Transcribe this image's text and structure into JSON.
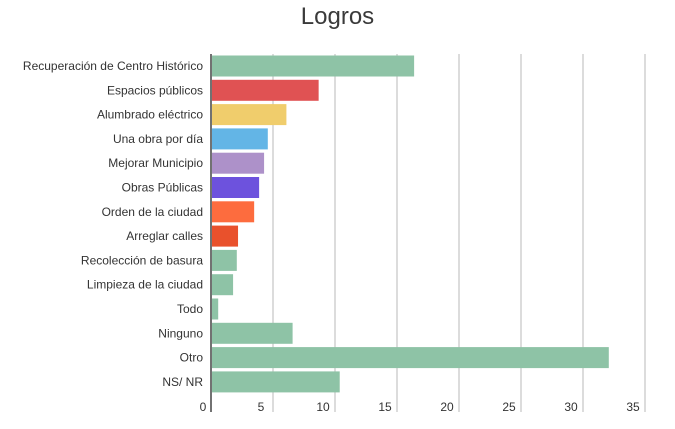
{
  "chart_data": {
    "type": "bar",
    "orientation": "horizontal",
    "title": "Logros",
    "categories": [
      "Recuperación de Centro Histórico",
      "Espacios públicos",
      "Alumbrado eléctrico",
      "Una obra por día",
      "Mejorar Municipio",
      "Obras Públicas",
      "Orden de la ciudad",
      "Arreglar calles",
      "Recolección de basura",
      "Limpieza de la ciudad",
      "Todo",
      "Ninguno",
      "Otro",
      "NS/ NR"
    ],
    "values": [
      16.3,
      8.6,
      6,
      4.5,
      4.2,
      3.8,
      3.4,
      2.1,
      2,
      1.7,
      0.5,
      6.5,
      32,
      10.3
    ],
    "colors": [
      "#8ec3a6",
      "#e05253",
      "#f0cd6c",
      "#63b5e6",
      "#ad91c9",
      "#6d52dd",
      "#fd6c3e",
      "#e9512c",
      "#8ec3a6",
      "#8ec3a6",
      "#8ec3a6",
      "#8ec3a6",
      "#8ec3a6",
      "#8ec3a6"
    ],
    "xticks": [
      0,
      5,
      10,
      15,
      20,
      25,
      30,
      35
    ],
    "xlim": [
      0,
      35
    ],
    "grid": true,
    "xlabel": "",
    "ylabel": ""
  }
}
